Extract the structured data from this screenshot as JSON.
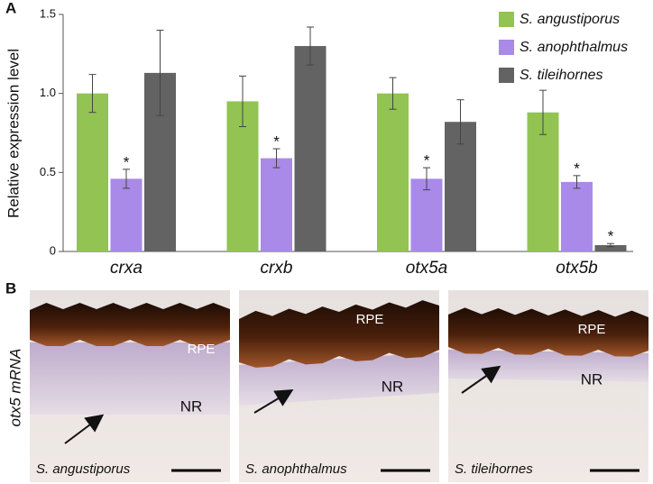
{
  "panel_labels": [
    "A",
    "B"
  ],
  "chart_data": {
    "type": "bar",
    "ylabel": "Relative expression level",
    "categories": [
      "crxa",
      "crxb",
      "otx5a",
      "otx5b"
    ],
    "series": [
      {
        "name": "S. angustiporus",
        "color": "#92c353",
        "values": [
          1.0,
          0.95,
          1.0,
          0.88
        ],
        "errors": [
          0.12,
          0.16,
          0.1,
          0.14
        ]
      },
      {
        "name": "S. anophthalmus",
        "color": "#a98ae8",
        "values": [
          0.46,
          0.59,
          0.46,
          0.44
        ],
        "errors": [
          0.06,
          0.06,
          0.07,
          0.04
        ],
        "significance": [
          "*",
          "*",
          "*",
          "*"
        ]
      },
      {
        "name": "S. tileihornes",
        "color": "#636363",
        "values": [
          1.13,
          1.3,
          0.82,
          0.04
        ],
        "errors": [
          0.27,
          0.12,
          0.14,
          0.01
        ],
        "significance": [
          null,
          null,
          null,
          "*"
        ]
      }
    ],
    "ylim": [
      0,
      1.5
    ],
    "yticks": [
      0,
      0.5,
      {
        "value": 1,
        "label": "1.0"
      },
      {
        "value": 1.5,
        "label": "1.5"
      }
    ],
    "legend": "upper right"
  },
  "panel_b": {
    "side_label": "otx5 mRNA",
    "images": [
      {
        "caption": "S. angustiporus",
        "layers": [
          "RPE",
          "NR"
        ]
      },
      {
        "caption": "S. anophthalmus",
        "layers": [
          "RPE",
          "NR"
        ]
      },
      {
        "caption": "S. tileihornes",
        "layers": [
          "RPE",
          "NR"
        ]
      }
    ]
  }
}
